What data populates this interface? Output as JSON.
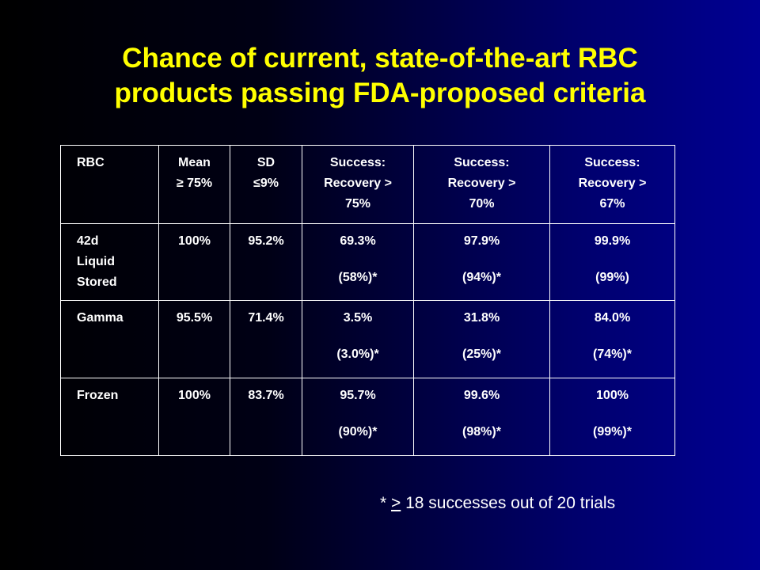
{
  "title_line1": "Chance of current, state-of-the-art RBC",
  "title_line2": "products passing FDA-proposed criteria",
  "header": {
    "rbc": "RBC",
    "mean_l1": "Mean",
    "mean_l2": "≥ 75%",
    "sd_l1": "SD",
    "sd_l2": "≤9%",
    "s75_l1": "Success:",
    "s75_l2": "Recovery >",
    "s75_l3": "75%",
    "s70_l1": "Success:",
    "s70_l2": "Recovery >",
    "s70_l3": "70%",
    "s67_l1": "Success:",
    "s67_l2": "Recovery >",
    "s67_l3": "67%"
  },
  "rows": [
    {
      "name_l1": "42d",
      "name_l2": "Liquid",
      "name_l3": "Stored",
      "mean": "100%",
      "sd": "95.2%",
      "s75": "69.3%",
      "s75_paren": "(58%)*",
      "s70": "97.9%",
      "s70_paren": "(94%)*",
      "s67": "99.9%",
      "s67_paren": "(99%)"
    },
    {
      "name_l1": "Gamma",
      "mean": "95.5%",
      "sd": "71.4%",
      "s75": "3.5%",
      "s75_paren": "(3.0%)*",
      "s70": "31.8%",
      "s70_paren": "(25%)*",
      "s67": "84.0%",
      "s67_paren": "(74%)*"
    },
    {
      "name_l1": "Frozen",
      "mean": "100%",
      "sd": "83.7%",
      "s75": "95.7%",
      "s75_paren": "(90%)*",
      "s70": "99.6%",
      "s70_paren": "(98%)*",
      "s67": "100%",
      "s67_paren": "(99%)*"
    }
  ],
  "footnote": {
    "star": "* ",
    "symbol": ">",
    "text": " 18 successes out of 20 trials"
  },
  "colors": {
    "title": "#ffff00",
    "text": "#ffffff",
    "background_left": "#000000",
    "background_right": "#000093"
  }
}
